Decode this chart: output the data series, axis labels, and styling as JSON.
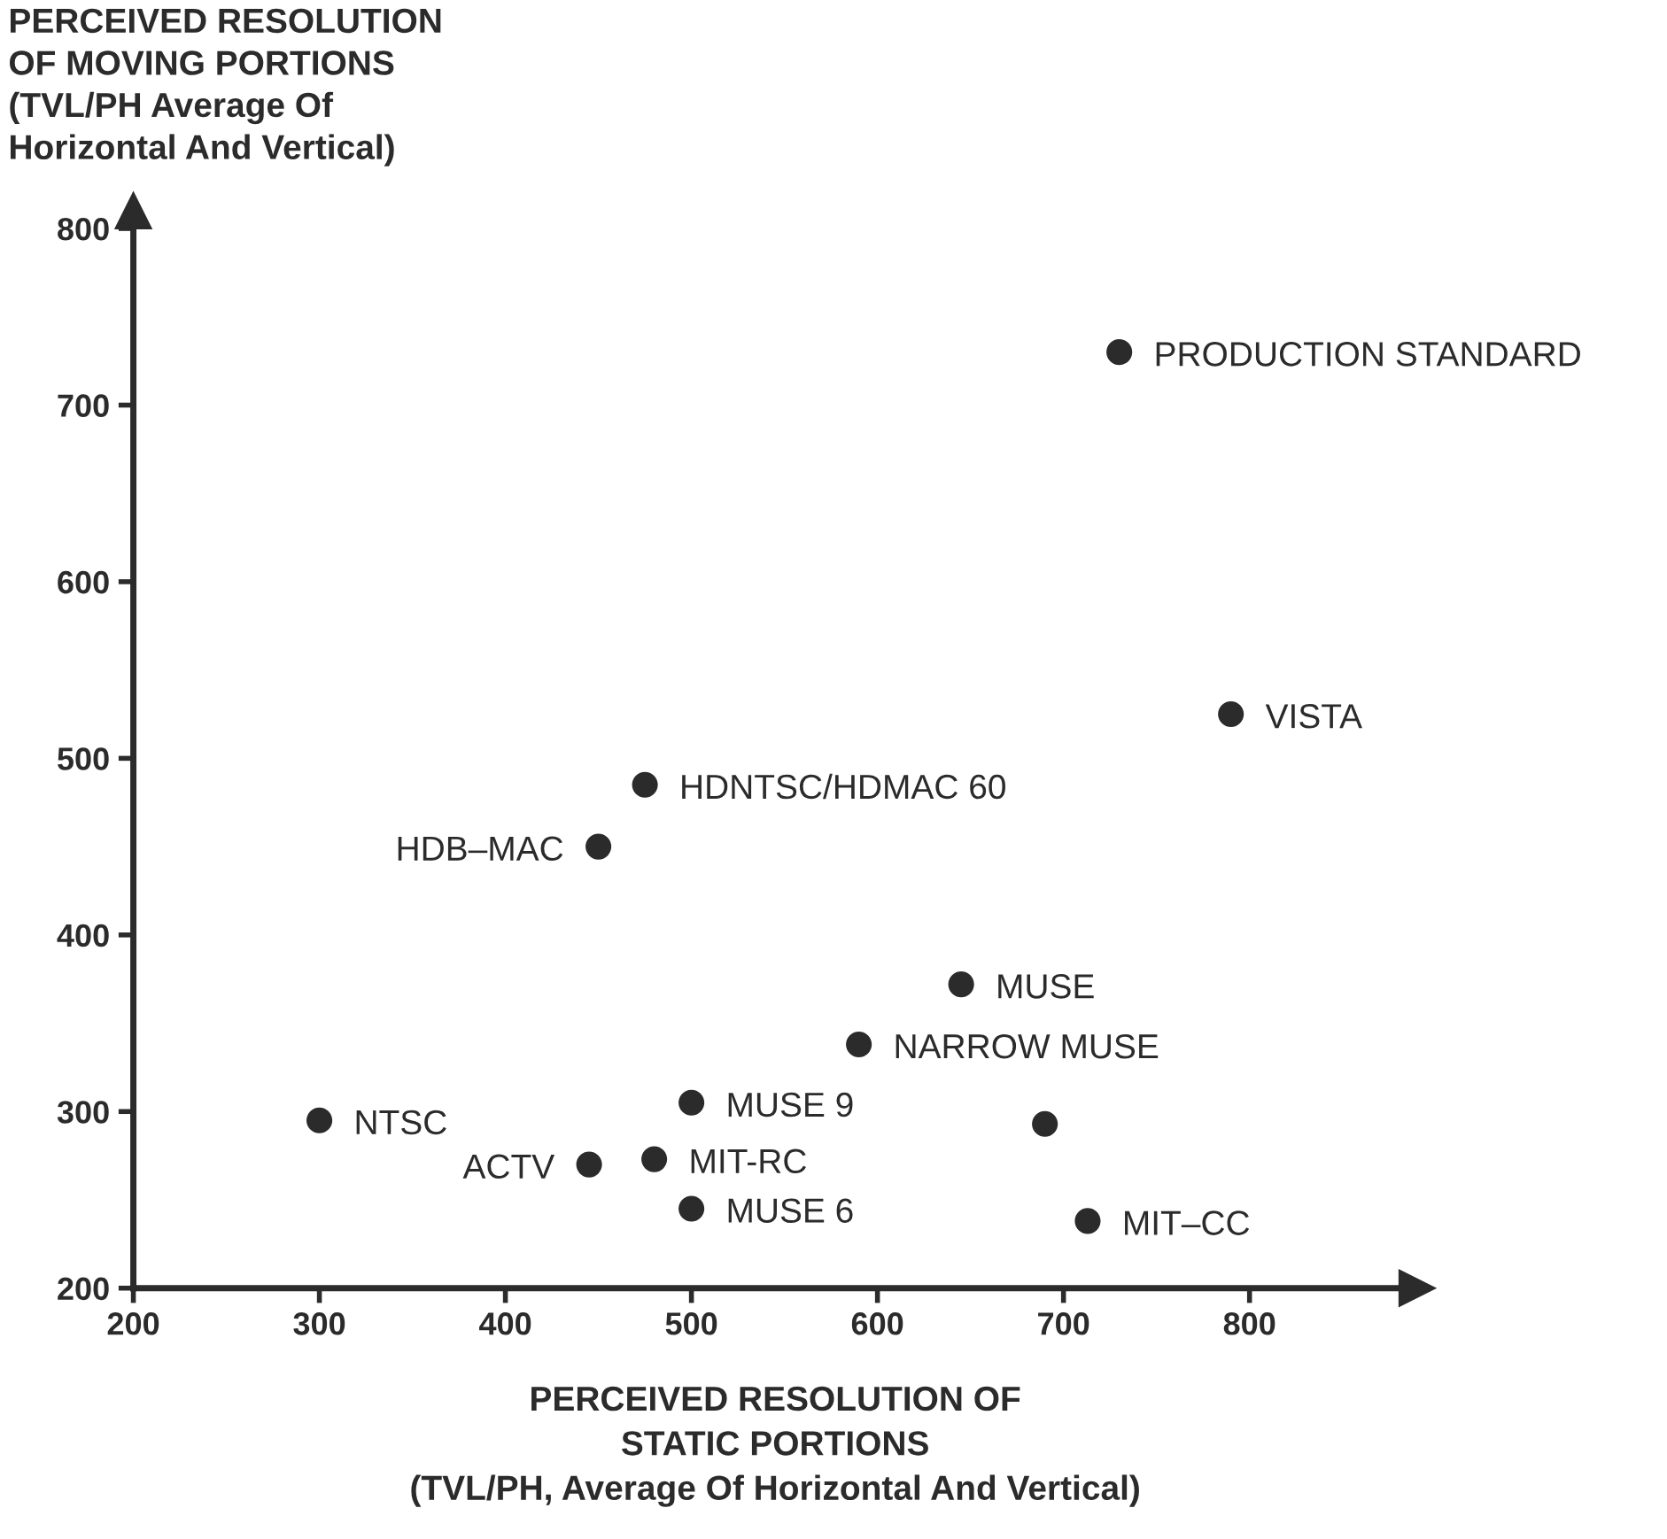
{
  "chart_data": {
    "type": "scatter",
    "xlabel": "PERCEIVED RESOLUTION OF\nSTATIC PORTIONS\n(TVL/PH, Average Of Horizontal And Vertical)",
    "ylabel": "PERCEIVED RESOLUTION\nOF MOVING PORTIONS\n(TVL/PH Average Of\nHorizontal And Vertical)",
    "series": [
      {
        "color": "#2b2b2b",
        "x": [
          730,
          790,
          475,
          450,
          645,
          590,
          300,
          500,
          690,
          445,
          480,
          500,
          713
        ],
        "values": [
          730,
          525,
          485,
          450,
          372,
          338,
          295,
          305,
          293,
          270,
          273,
          245,
          238
        ]
      }
    ],
    "marker": "circle",
    "annotations": [
      {
        "text": "PRODUCTION STANDARD",
        "x": 730,
        "y": 730
      },
      {
        "text": "VISTA",
        "x": 790,
        "y": 525
      },
      {
        "text": "HDNTSC/HDMAC 60",
        "x": 475,
        "y": 485
      },
      {
        "text": "HDB–MAC",
        "x": 450,
        "y": 450
      },
      {
        "text": "MUSE",
        "x": 645,
        "y": 372
      },
      {
        "text": "NARROW MUSE",
        "x": 590,
        "y": 338
      },
      {
        "text": "NTSC",
        "x": 300,
        "y": 295
      },
      {
        "text": "MUSE 9",
        "x": 500,
        "y": 305
      },
      {
        "text": "ACTV",
        "x": 445,
        "y": 270
      },
      {
        "text": "MIT-RC",
        "x": 480,
        "y": 273
      },
      {
        "text": "MUSE 6",
        "x": 500,
        "y": 245
      },
      {
        "text": "MIT–CC",
        "x": 713,
        "y": 238
      }
    ],
    "xlim": [
      200,
      890
    ],
    "ylim": [
      200,
      810
    ],
    "xticks": [
      200,
      300,
      400,
      500,
      600,
      700,
      800
    ],
    "yticks": [
      200,
      300,
      400,
      500,
      600,
      700,
      800
    ],
    "grid": false
  }
}
